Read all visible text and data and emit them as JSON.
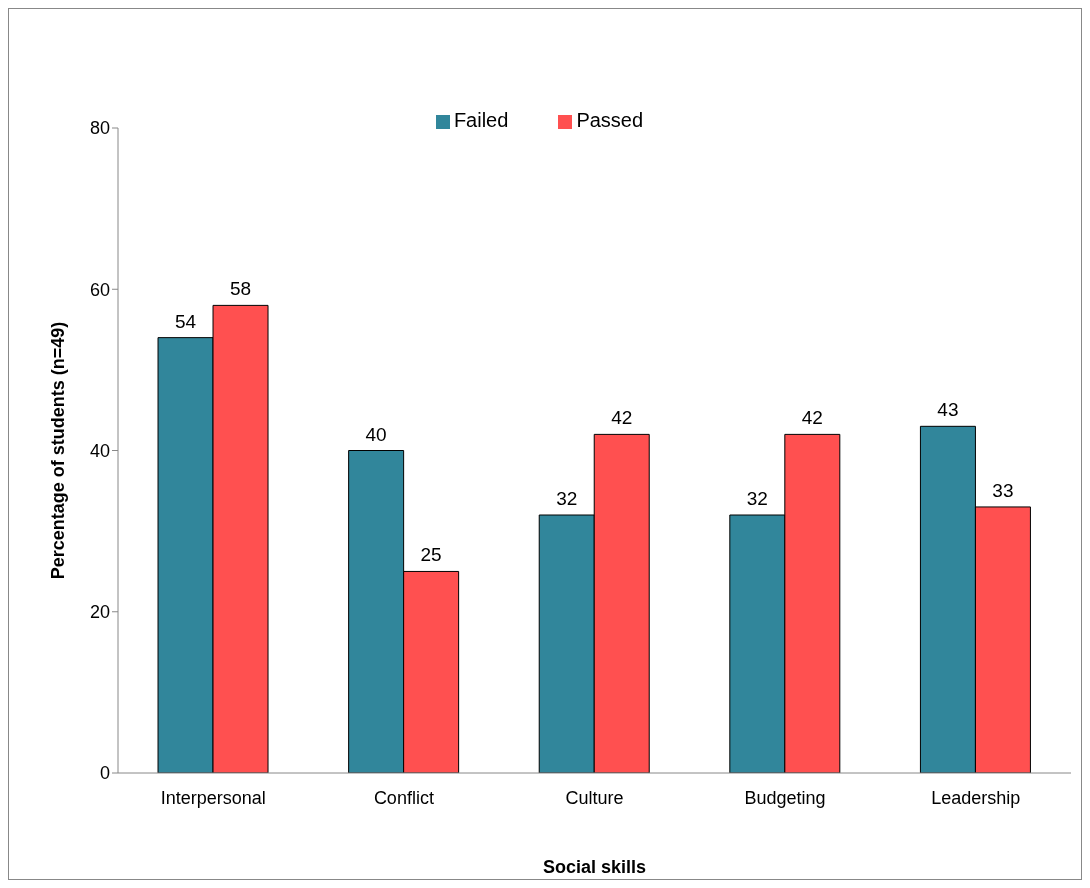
{
  "chart_data": {
    "type": "bar",
    "xlabel": "Social skills",
    "ylabel": "Percentage of students (n=49)",
    "categories": [
      "Interpersonal",
      "Conflict",
      "Culture",
      "Budgeting",
      "Leadership"
    ],
    "series": [
      {
        "name": "Failed",
        "color": "#31869b",
        "values": [
          54,
          40,
          32,
          32,
          43
        ]
      },
      {
        "name": "Passed",
        "color": "#ff5050",
        "values": [
          58,
          25,
          42,
          42,
          33
        ]
      }
    ],
    "ylim": [
      0,
      80
    ],
    "yticks": [
      0,
      20,
      40,
      60,
      80
    ],
    "grid": false,
    "legend": "top",
    "data_labels": true
  }
}
